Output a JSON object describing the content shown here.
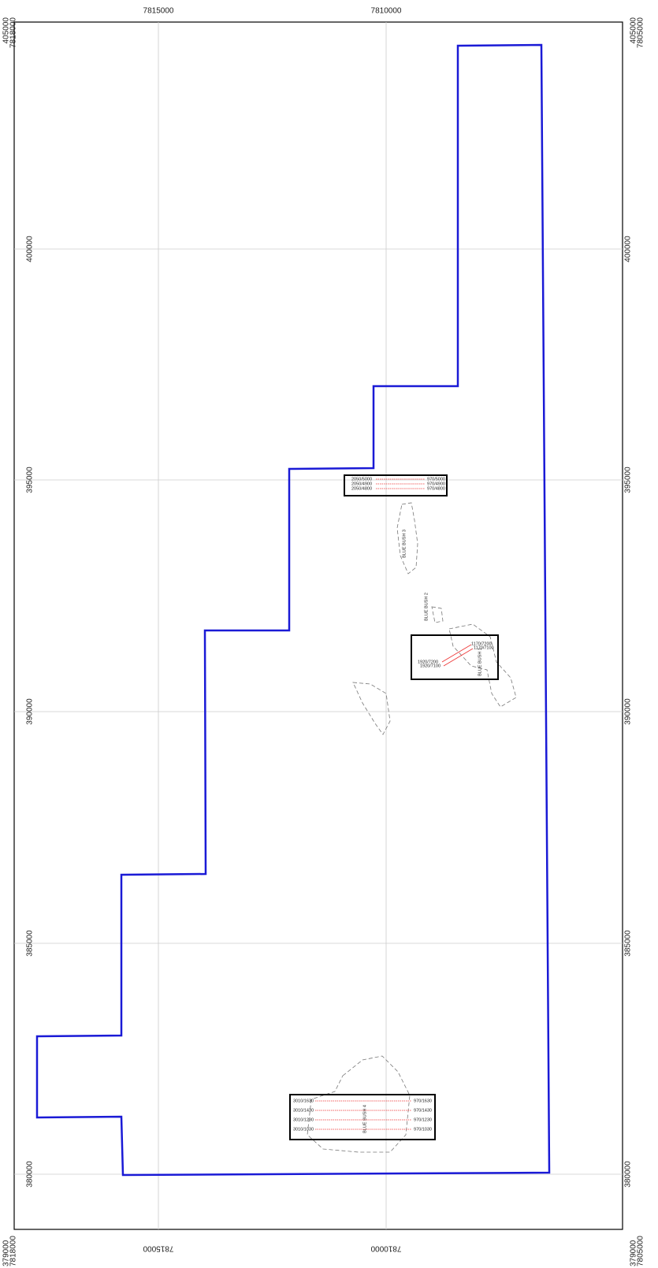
{
  "frame": {
    "corners": {
      "top_left": [
        "405000",
        "7818000"
      ],
      "top_right": [
        "405000",
        "7805000"
      ],
      "bottom_left": [
        "379000",
        "7818000"
      ],
      "bottom_right": [
        "379000",
        "7805000"
      ]
    },
    "top_labels": [
      "7815000",
      "7810000"
    ],
    "bottom_labels": [
      "7815000",
      "7810000"
    ],
    "left_labels": [
      "400000",
      "395000",
      "390000",
      "385000",
      "380000"
    ],
    "right_labels": [
      "400000",
      "395000",
      "390000",
      "385000",
      "380000"
    ]
  },
  "areas": [
    "BLUE BUSH 3",
    "BLUE BUSH 2",
    "BLUE BUSH 1",
    "BLUE BUSH 4"
  ],
  "box_north": {
    "left": [
      "2050/5000",
      "2050/4900",
      "2050/4800"
    ],
    "right": [
      "970/5000",
      "970/4900",
      "970/4800"
    ]
  },
  "box_middle": {
    "labels": [
      "1170/7200",
      "1170/7100",
      "1920/7200",
      "1920/7100"
    ]
  },
  "box_south": {
    "left": [
      "3010/1630",
      "3010/1430",
      "3010/1230",
      "3010/1030"
    ],
    "right": [
      "970/1630",
      "970/1430",
      "970/1230",
      "970/1030"
    ]
  }
}
